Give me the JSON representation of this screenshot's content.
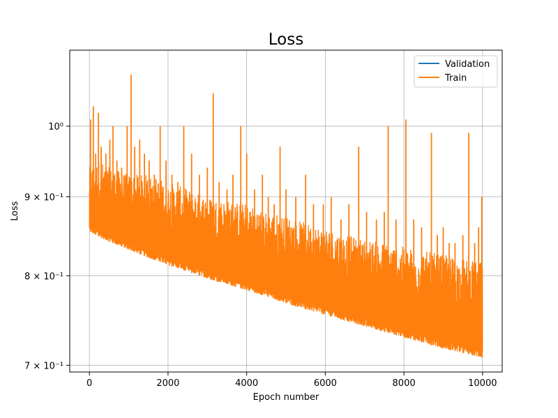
{
  "chart_data": {
    "type": "line",
    "title": "Loss",
    "xlabel": "Epoch number",
    "ylabel": "Loss",
    "xlim": [
      -500,
      10500
    ],
    "ylim": [
      0.693,
      1.12
    ],
    "yscale": "log",
    "grid": true,
    "legend_position": "top-right",
    "x_ticks": [
      {
        "value": 0,
        "label": "0"
      },
      {
        "value": 2000,
        "label": "2000"
      },
      {
        "value": 4000,
        "label": "4000"
      },
      {
        "value": 6000,
        "label": "6000"
      },
      {
        "value": 8000,
        "label": "8000"
      },
      {
        "value": 10000,
        "label": "10000"
      }
    ],
    "y_ticks": [
      {
        "value": 0.7,
        "label": "7 × 10⁻¹"
      },
      {
        "value": 0.8,
        "label": "8 × 10⁻¹"
      },
      {
        "value": 0.9,
        "label": "9 × 10⁻¹"
      },
      {
        "value": 1.0,
        "label": "10⁰"
      }
    ],
    "series": [
      {
        "name": "Validation",
        "color": "#1f77b4",
        "x": [],
        "y": []
      },
      {
        "name": "Train",
        "color": "#ff7f0e",
        "x": [
          0,
          250,
          500,
          1000,
          1500,
          2000,
          2500,
          3000,
          3500,
          4000,
          4500,
          5000,
          5500,
          6000,
          6500,
          7000,
          7500,
          8000,
          8500,
          9000,
          9500,
          10000
        ],
        "y_lower": [
          0.855,
          0.848,
          0.842,
          0.832,
          0.822,
          0.813,
          0.805,
          0.797,
          0.79,
          0.783,
          0.776,
          0.768,
          0.761,
          0.755,
          0.748,
          0.742,
          0.736,
          0.73,
          0.724,
          0.718,
          0.713,
          0.708
        ],
        "y_upper": [
          0.94,
          0.95,
          0.94,
          0.93,
          0.93,
          0.92,
          0.91,
          0.9,
          0.895,
          0.89,
          0.88,
          0.875,
          0.865,
          0.86,
          0.85,
          0.845,
          0.84,
          0.835,
          0.83,
          0.825,
          0.82,
          0.815
        ],
        "spikes": [
          [
            30,
            1.01
          ],
          [
            100,
            1.03
          ],
          [
            160,
            0.96
          ],
          [
            230,
            1.02
          ],
          [
            300,
            0.97
          ],
          [
            420,
            0.96
          ],
          [
            520,
            0.98
          ],
          [
            600,
            1.0
          ],
          [
            700,
            0.95
          ],
          [
            820,
            0.94
          ],
          [
            960,
            1.0
          ],
          [
            1060,
            1.08
          ],
          [
            1150,
            0.97
          ],
          [
            1280,
            0.98
          ],
          [
            1400,
            0.96
          ],
          [
            1520,
            0.95
          ],
          [
            1650,
            0.93
          ],
          [
            1800,
            1.0
          ],
          [
            1950,
            0.95
          ],
          [
            2100,
            0.93
          ],
          [
            2250,
            0.92
          ],
          [
            2400,
            1.0
          ],
          [
            2600,
            0.96
          ],
          [
            2800,
            0.93
          ],
          [
            3000,
            0.94
          ],
          [
            3150,
            1.05
          ],
          [
            3300,
            0.92
          ],
          [
            3500,
            0.91
          ],
          [
            3650,
            0.93
          ],
          [
            3850,
            1.0
          ],
          [
            4000,
            0.96
          ],
          [
            4200,
            0.91
          ],
          [
            4400,
            0.93
          ],
          [
            4550,
            0.9
          ],
          [
            4700,
            0.89
          ],
          [
            4850,
            0.97
          ],
          [
            5000,
            0.91
          ],
          [
            5250,
            0.9
          ],
          [
            5500,
            0.93
          ],
          [
            5700,
            0.89
          ],
          [
            5950,
            0.89
          ],
          [
            6150,
            0.9
          ],
          [
            6400,
            0.87
          ],
          [
            6600,
            0.89
          ],
          [
            6850,
            0.97
          ],
          [
            7050,
            0.88
          ],
          [
            7300,
            0.87
          ],
          [
            7500,
            0.88
          ],
          [
            7600,
            1.0
          ],
          [
            7800,
            0.87
          ],
          [
            8050,
            1.01
          ],
          [
            8250,
            0.87
          ],
          [
            8450,
            0.86
          ],
          [
            8700,
            0.99
          ],
          [
            8850,
            0.85
          ],
          [
            9000,
            0.86
          ],
          [
            9150,
            0.84
          ],
          [
            9300,
            0.84
          ],
          [
            9500,
            0.85
          ],
          [
            9650,
            0.99
          ],
          [
            9800,
            0.84
          ],
          [
            9900,
            0.86
          ],
          [
            9980,
            0.9
          ]
        ]
      }
    ]
  }
}
